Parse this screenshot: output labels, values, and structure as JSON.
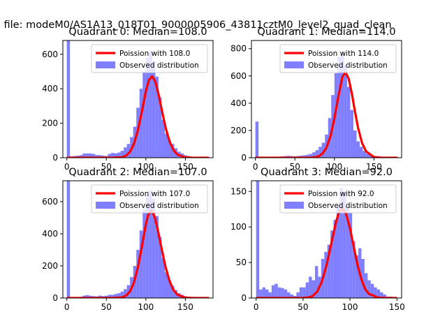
{
  "figure": {
    "suptitle": "a file: modeM0/AS1A13_018T01_9000005906_43811cztM0_level2_quad_clean"
  },
  "colors": {
    "poisson": "#ff0000",
    "observed": "#7f7fff",
    "axes": "#000000"
  },
  "chart_data": [
    {
      "type": "bar",
      "title": "Quadrant 0: Median=108.0",
      "median": 108.0,
      "xlim": [
        -5,
        185
      ],
      "ylim": [
        0,
        680
      ],
      "xticks": [
        0,
        50,
        100,
        150
      ],
      "yticks": [
        0,
        200,
        400,
        600
      ],
      "legend": {
        "placement": "top-right",
        "entries": [
          "Poission with 108.0",
          "Observed distribution"
        ]
      },
      "series": [
        {
          "name": "Observed distribution",
          "kind": "histogram",
          "bin_edges": [
            0,
            4,
            8,
            12,
            16,
            20,
            24,
            28,
            32,
            36,
            40,
            44,
            48,
            52,
            56,
            60,
            64,
            68,
            72,
            76,
            80,
            84,
            88,
            92,
            96,
            100,
            104,
            108,
            112,
            116,
            120,
            124,
            128,
            132,
            136,
            140,
            144,
            148,
            152,
            156,
            160,
            164,
            168,
            172,
            176,
            180
          ],
          "counts": [
            700,
            8,
            10,
            12,
            15,
            25,
            25,
            25,
            22,
            15,
            15,
            12,
            10,
            22,
            28,
            25,
            30,
            40,
            60,
            80,
            120,
            180,
            290,
            400,
            500,
            580,
            620,
            560,
            470,
            350,
            220,
            140,
            100,
            80,
            55,
            35,
            25,
            15,
            10,
            6,
            4,
            3,
            2,
            1,
            1
          ]
        },
        {
          "name": "Poission with 108.0",
          "kind": "curve",
          "x": [
            0,
            20,
            40,
            60,
            70,
            75,
            80,
            85,
            90,
            95,
            100,
            104,
            108,
            112,
            116,
            120,
            125,
            130,
            135,
            140,
            150,
            160,
            180
          ],
          "y": [
            0,
            0,
            0,
            0.3,
            3,
            12,
            34,
            81,
            160,
            269,
            385,
            451,
            472,
            441,
            370,
            282,
            175,
            94,
            44,
            18,
            2,
            0,
            0
          ]
        }
      ]
    },
    {
      "type": "bar",
      "title": "Quadrant 1: Median=114.0",
      "median": 114.0,
      "xlim": [
        -5,
        185
      ],
      "ylim": [
        0,
        860
      ],
      "xticks": [
        0,
        50,
        100,
        150
      ],
      "yticks": [
        0,
        200,
        400,
        600,
        800
      ],
      "legend": {
        "placement": "top-right",
        "entries": [
          "Poission with 114.0",
          "Observed distribution"
        ]
      },
      "series": [
        {
          "name": "Observed distribution",
          "kind": "histogram",
          "bin_edges": [
            0,
            4,
            8,
            12,
            16,
            20,
            24,
            28,
            32,
            36,
            40,
            44,
            48,
            52,
            56,
            60,
            64,
            68,
            72,
            76,
            80,
            84,
            88,
            92,
            96,
            100,
            104,
            108,
            112,
            116,
            120,
            124,
            128,
            132,
            136,
            140,
            144,
            148,
            152,
            156,
            160,
            164,
            168,
            172,
            176,
            180
          ],
          "counts": [
            265,
            5,
            5,
            5,
            5,
            6,
            7,
            8,
            10,
            12,
            14,
            12,
            10,
            12,
            15,
            18,
            22,
            28,
            40,
            55,
            80,
            110,
            170,
            290,
            460,
            620,
            740,
            770,
            680,
            520,
            350,
            200,
            120,
            80,
            50,
            30,
            20,
            12,
            8,
            5,
            3,
            2,
            1,
            1,
            0
          ]
        },
        {
          "name": "Poission with 114.0",
          "kind": "curve",
          "x": [
            0,
            20,
            40,
            60,
            70,
            75,
            80,
            85,
            90,
            95,
            100,
            105,
            110,
            114,
            118,
            122,
            126,
            130,
            135,
            140,
            150,
            160,
            180
          ],
          "y": [
            0,
            0,
            0,
            0,
            1,
            3,
            11,
            30,
            74,
            158,
            289,
            450,
            591,
            627,
            580,
            473,
            340,
            216,
            108,
            47,
            5,
            0,
            0
          ]
        }
      ]
    },
    {
      "type": "bar",
      "title": "Quadrant 2: Median=107.0",
      "median": 107.0,
      "xlim": [
        -5,
        185
      ],
      "ylim": [
        0,
        730
      ],
      "xticks": [
        0,
        50,
        100,
        150
      ],
      "yticks": [
        0,
        200,
        400,
        600
      ],
      "legend": {
        "placement": "top-right",
        "entries": [
          "Poission with 107.0",
          "Observed distribution"
        ]
      },
      "series": [
        {
          "name": "Observed distribution",
          "kind": "histogram",
          "bin_edges": [
            0,
            4,
            8,
            12,
            16,
            20,
            24,
            28,
            32,
            36,
            40,
            44,
            48,
            52,
            56,
            60,
            64,
            68,
            72,
            76,
            80,
            84,
            88,
            92,
            96,
            100,
            104,
            108,
            112,
            116,
            120,
            124,
            128,
            132,
            136,
            140,
            144,
            148,
            152,
            156,
            160,
            164,
            168,
            172,
            176,
            180
          ],
          "counts": [
            740,
            4,
            5,
            6,
            8,
            15,
            18,
            14,
            12,
            10,
            15,
            12,
            14,
            20,
            20,
            25,
            30,
            40,
            55,
            80,
            130,
            200,
            300,
            420,
            550,
            640,
            670,
            620,
            510,
            380,
            250,
            160,
            110,
            75,
            50,
            30,
            20,
            12,
            8,
            5,
            3,
            2,
            1,
            1,
            0
          ]
        },
        {
          "name": "Poission with 107.0",
          "kind": "curve",
          "x": [
            0,
            20,
            40,
            60,
            70,
            75,
            80,
            85,
            90,
            95,
            100,
            103,
            107,
            111,
            115,
            119,
            125,
            130,
            135,
            140,
            150,
            160,
            180
          ],
          "y": [
            0,
            0,
            0,
            0.4,
            4,
            15,
            41,
            97,
            192,
            321,
            458,
            518,
            545,
            507,
            427,
            330,
            192,
            105,
            50,
            20,
            2,
            0,
            0
          ]
        }
      ]
    },
    {
      "type": "bar",
      "title": "Quadrant 3: Median=92.0",
      "median": 92.0,
      "xlim": [
        -5,
        155
      ],
      "ylim": [
        0,
        165
      ],
      "xticks": [
        0,
        50,
        100,
        150
      ],
      "yticks": [
        0,
        50,
        100,
        150
      ],
      "legend": {
        "placement": "top-right",
        "entries": [
          "Poission with 92.0",
          "Observed distribution"
        ]
      },
      "series": [
        {
          "name": "Observed distribution",
          "kind": "histogram",
          "bin_edges": [
            0,
            3.3,
            6.6,
            9.9,
            13.2,
            16.5,
            19.8,
            23.1,
            26.4,
            29.7,
            33,
            36.3,
            39.6,
            42.9,
            46.2,
            49.5,
            52.8,
            56.1,
            59.4,
            62.7,
            66,
            69.3,
            72.6,
            75.9,
            79.2,
            82.5,
            85.8,
            89.1,
            92.4,
            95.7,
            99,
            102.3,
            105.6,
            108.9,
            112.2,
            115.5,
            118.8,
            122.1,
            125.4,
            128.7,
            132,
            135.3,
            138.6,
            141.9,
            145.2
          ],
          "counts": [
            170,
            12,
            15,
            12,
            8,
            18,
            20,
            15,
            14,
            12,
            8,
            5,
            3,
            8,
            15,
            15,
            22,
            30,
            25,
            45,
            30,
            55,
            65,
            75,
            95,
            110,
            130,
            155,
            150,
            128,
            120,
            80,
            60,
            70,
            55,
            35,
            25,
            20,
            15,
            12,
            8,
            5,
            2,
            2
          ]
        },
        {
          "name": "Poission with 92.0",
          "kind": "curve",
          "x": [
            0,
            20,
            40,
            50,
            55,
            60,
            65,
            70,
            75,
            80,
            85,
            88,
            92,
            96,
            100,
            104,
            108,
            112,
            116,
            120,
            130,
            140,
            150
          ],
          "y": [
            0,
            0,
            0,
            0.1,
            0.6,
            2.6,
            8.8,
            23,
            46,
            76,
            106,
            120,
            126,
            118,
            98,
            72,
            47,
            27,
            13,
            6,
            0.5,
            0,
            0
          ]
        }
      ]
    }
  ]
}
